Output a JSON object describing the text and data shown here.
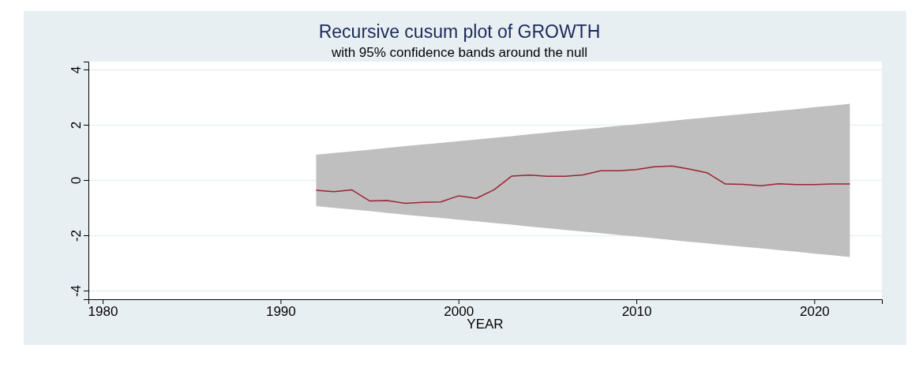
{
  "chart_data": {
    "type": "line",
    "title": "Recursive cusum plot of GROWTH",
    "subtitle": "with 95% confidence bands around the null",
    "xlabel": "YEAR",
    "x": [
      1992,
      1993,
      1994,
      1995,
      1996,
      1997,
      1998,
      1999,
      2000,
      2001,
      2002,
      2003,
      2004,
      2005,
      2006,
      2007,
      2008,
      2009,
      2010,
      2011,
      2012,
      2013,
      2014,
      2015,
      2016,
      2017,
      2018,
      2019,
      2020,
      2021,
      2022
    ],
    "series": [
      {
        "color": "#9b2335",
        "values": [
          -0.36,
          -0.41,
          -0.34,
          -0.74,
          -0.73,
          -0.83,
          -0.79,
          -0.78,
          -0.56,
          -0.65,
          -0.34,
          0.16,
          0.19,
          0.15,
          0.15,
          0.2,
          0.35,
          0.35,
          0.39,
          0.49,
          0.52,
          0.41,
          0.27,
          -0.13,
          -0.14,
          -0.19,
          -0.12,
          -0.15,
          -0.15,
          -0.13,
          -0.13
        ],
        "upper": [
          0.93,
          0.99,
          1.05,
          1.11,
          1.18,
          1.24,
          1.3,
          1.36,
          1.42,
          1.48,
          1.54,
          1.6,
          1.67,
          1.73,
          1.79,
          1.85,
          1.91,
          1.97,
          2.03,
          2.09,
          2.16,
          2.22,
          2.28,
          2.34,
          2.4,
          2.46,
          2.52,
          2.58,
          2.65,
          2.71,
          2.77
        ],
        "lower": [
          -0.93,
          -0.99,
          -1.05,
          -1.11,
          -1.18,
          -1.24,
          -1.3,
          -1.36,
          -1.42,
          -1.48,
          -1.54,
          -1.6,
          -1.67,
          -1.73,
          -1.79,
          -1.85,
          -1.91,
          -1.97,
          -2.03,
          -2.09,
          -2.16,
          -2.22,
          -2.28,
          -2.34,
          -2.4,
          -2.46,
          -2.52,
          -2.58,
          -2.65,
          -2.71,
          -2.77
        ]
      }
    ],
    "xlim": [
      1979.2,
      2023.8
    ],
    "xticks": [
      1980,
      1990,
      2000,
      2010,
      2020
    ],
    "ylim": [
      -4.3,
      4.3
    ],
    "yticks": [
      -4,
      -2,
      0,
      2,
      4
    ],
    "grid": "y",
    "marker": "none",
    "line_style": "solid"
  }
}
